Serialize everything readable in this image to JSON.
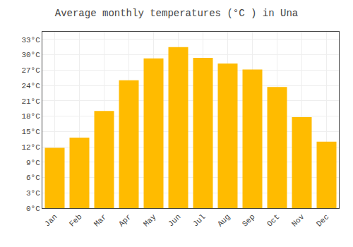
{
  "chart_data": {
    "type": "bar",
    "title": "Average monthly temperatures (°C ) in Una",
    "categories": [
      "Jan",
      "Feb",
      "Mar",
      "Apr",
      "May",
      "Jun",
      "Jul",
      "Aug",
      "Sep",
      "Oct",
      "Nov",
      "Dec"
    ],
    "values": [
      11.8,
      13.8,
      19.0,
      25.0,
      29.3,
      31.5,
      29.4,
      28.3,
      27.1,
      23.7,
      17.8,
      13.0
    ],
    "color": "#FFBB00",
    "ylim": [
      0,
      34.5
    ],
    "yticks": [
      {
        "value": 0,
        "label": "0°C"
      },
      {
        "value": 3,
        "label": "3°C"
      },
      {
        "value": 6,
        "label": "6°C"
      },
      {
        "value": 9,
        "label": "9°C"
      },
      {
        "value": 12,
        "label": "12°C"
      },
      {
        "value": 15,
        "label": "15°C"
      },
      {
        "value": 18,
        "label": "18°C"
      },
      {
        "value": 21,
        "label": "21°C"
      },
      {
        "value": 24,
        "label": "24°C"
      },
      {
        "value": 27,
        "label": "27°C"
      },
      {
        "value": 30,
        "label": "30°C"
      },
      {
        "value": 33,
        "label": "33°C"
      }
    ],
    "grid": true
  }
}
